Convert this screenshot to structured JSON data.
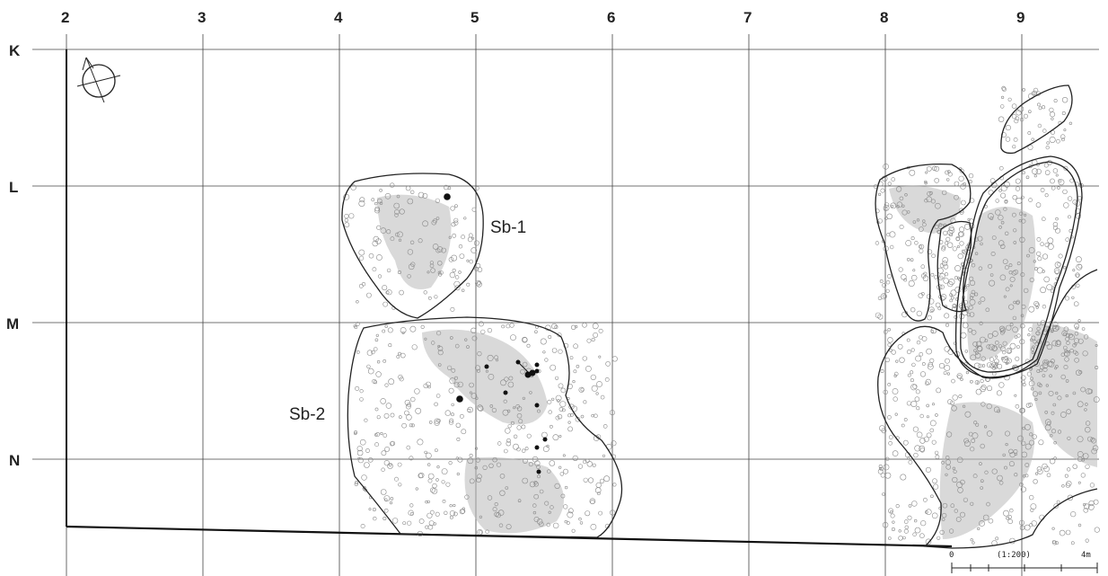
{
  "grid": {
    "columns": [
      "2",
      "3",
      "4",
      "5",
      "6",
      "7",
      "8",
      "9"
    ],
    "rows": [
      "K",
      "L",
      "M",
      "N"
    ]
  },
  "features": [
    {
      "id": "sb-1",
      "label": "Sb-1"
    },
    {
      "id": "sb-2",
      "label": "Sb-2"
    }
  ],
  "scale_bar": {
    "start": "0",
    "ratio": "(1:200)",
    "end": "4m"
  },
  "icons": {
    "north_arrow": "north-arrow-icon"
  },
  "colors": {
    "line": "#222222",
    "grid": "#444444",
    "stones": "#8a8a8a",
    "artifact": "#111111"
  }
}
